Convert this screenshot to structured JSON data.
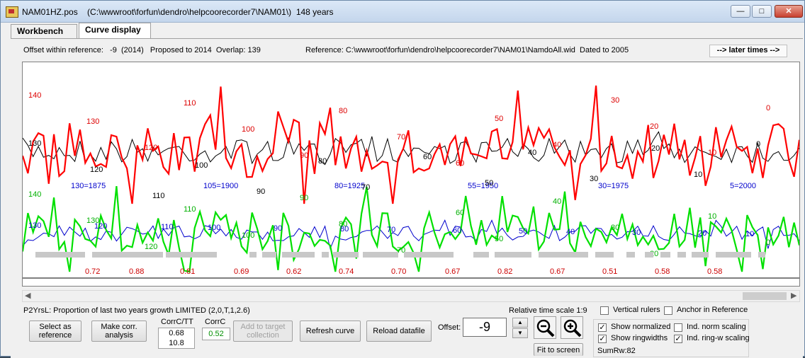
{
  "window": {
    "title": "NAM01HZ.pos    (C:\\wwwroot\\forfun\\dendro\\helpcoorecorder7\\NAM01\\)  148 years",
    "minimize": "—",
    "maximize": "□",
    "close": "✕"
  },
  "tabs": [
    {
      "label": "Workbench",
      "active": false
    },
    {
      "label": "Curve display",
      "active": true
    }
  ],
  "header": {
    "offset_info": "Offset within reference:   -9  (2014)   Proposed to 2014  Overlap: 139",
    "reference_info": "Reference: C:\\wwwroot\\forfun\\dendro\\helpcoorecorder7\\NAM01\\NamdoAll.wid  Dated to 2005",
    "later_times": "--> later times -->"
  },
  "chart_data": {
    "type": "line",
    "series": [
      {
        "name": "",
        "color": "#ff0000",
        "group": "upper"
      },
      {
        "name": "",
        "color": "#000000",
        "group": "upper"
      },
      {
        "name": "",
        "color": "#00e000",
        "group": "lower"
      },
      {
        "name": "",
        "color": "#0000cc",
        "group": "lower"
      }
    ],
    "year_labels": [
      "130=1875",
      "105=1900",
      "80=1925",
      "55=1950",
      "30=1975",
      "5=2000"
    ],
    "red_value_labels": [
      "140",
      "130",
      "120",
      "110",
      "100",
      "90",
      "80",
      "70",
      "60",
      "50",
      "40",
      "30",
      "20",
      "10",
      "0"
    ],
    "black_value_labels": [
      "130",
      "120",
      "110",
      "100",
      "90",
      "80",
      "70",
      "60",
      "50",
      "40",
      "30",
      "20",
      "10",
      "0"
    ],
    "green_value_labels": [
      "140",
      "130",
      "120",
      "110",
      "100",
      "90",
      "80",
      "70",
      "60",
      "50",
      "40",
      "30",
      "20",
      "10",
      "0"
    ],
    "blue_value_labels": [
      "130",
      "120",
      "110",
      "100",
      "90",
      "80",
      "70",
      "60",
      "50",
      "40",
      "30",
      "20",
      "10"
    ],
    "correlations": [
      "0.72",
      "0.88",
      "0.81",
      "0.69",
      "0.62",
      "0.74",
      "0.70",
      "0.67",
      "0.82",
      "0.67",
      "0.51",
      "0.58",
      "0.58"
    ]
  },
  "status": {
    "p2yrsl": "P2YrsL: Proportion of last two years growth LIMITED (2,0,T,1,2.6)"
  },
  "controls": {
    "select_reference": "Select as reference",
    "make_corr": "Make corr. analysis",
    "corrc_tt_label": "CorrC/TT",
    "corrc_tt_value1": "0.68",
    "corrc_tt_value2": "10.8",
    "corrc_label": "CorrC",
    "corrc_value": "0.52",
    "add_target": "Add to target collection",
    "refresh_curve": "Refresh curve",
    "reload_datafile": "Reload datafile",
    "offset_label": "Offset:",
    "offset_value": "-9",
    "relative_time_scale": "Relative time scale 1:9",
    "fit_to_screen": "Fit to screen",
    "vertical_rulers": "Vertical rulers",
    "anchor_in_reference": "Anchor in Reference",
    "show_normalized": "Show normalized",
    "show_ringwidths": "Show ringwidths",
    "ind_norm_scaling": "Ind. norm scaling",
    "ind_ringw_scaling": "Ind. ring-w scaling",
    "sumrw": "SumRw:82"
  },
  "checkboxes": {
    "vertical_rulers": false,
    "anchor_in_reference": false,
    "show_normalized": true,
    "show_ringwidths": true,
    "ind_norm_scaling": false,
    "ind_ringw_scaling": true
  },
  "icons": {
    "zoom_out": "zoom-out-icon",
    "zoom_in": "zoom-in-icon",
    "app": "app-icon"
  }
}
